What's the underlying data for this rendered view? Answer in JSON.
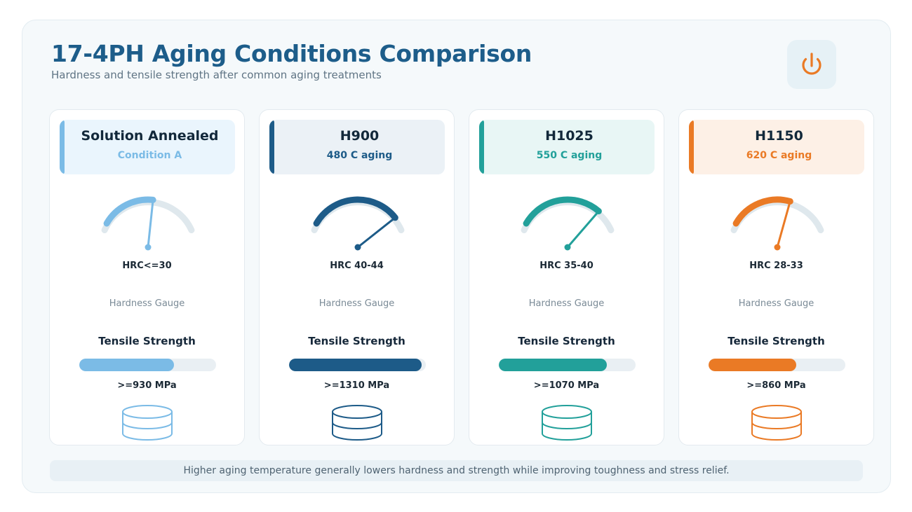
{
  "header": {
    "title": "17-4PH Aging Conditions Comparison",
    "subtitle": "Hardness and tensile strength after common aging treatments",
    "icon": "power-icon"
  },
  "cards": [
    {
      "name": "Solution Annealed",
      "sub": "Condition A",
      "hardness": "HRC<=30",
      "hardness_fraction": 0.55,
      "gauge_caption": "Hardness Gauge",
      "tensile_label": "Tensile Strength",
      "tensile_fraction": 0.69,
      "tensile_value": ">=930 MPa",
      "color": "#7bbbe6",
      "head_bg": "#eaf5fd",
      "icon": "cylinder-icon"
    },
    {
      "name": "H900",
      "sub": "480 C aging",
      "hardness": "HRC 40-44",
      "hardness_fraction": 0.93,
      "gauge_caption": "Hardness Gauge",
      "tensile_label": "Tensile Strength",
      "tensile_fraction": 0.97,
      "tensile_value": ">=1310 MPa",
      "color": "#1d5b88",
      "head_bg": "#ebf1f6",
      "icon": "cylinder-icon"
    },
    {
      "name": "H1025",
      "sub": "550 C aging",
      "hardness": "HRC 35-40",
      "hardness_fraction": 0.84,
      "gauge_caption": "Hardness Gauge",
      "tensile_label": "Tensile Strength",
      "tensile_fraction": 0.79,
      "tensile_value": ">=1070 MPa",
      "color": "#22a09a",
      "head_bg": "#e8f6f5",
      "icon": "cylinder-icon"
    },
    {
      "name": "H1150",
      "sub": "620 C aging",
      "hardness": "HRC 28-33",
      "hardness_fraction": 0.63,
      "gauge_caption": "Hardness Gauge",
      "tensile_label": "Tensile Strength",
      "tensile_fraction": 0.64,
      "tensile_value": ">=860 MPa",
      "color": "#ea7a25",
      "head_bg": "#fdf0e6",
      "icon": "cylinder-icon"
    }
  ],
  "footer": {
    "note": "Higher aging temperature generally lowers hardness and strength while improving toughness and stress relief."
  }
}
